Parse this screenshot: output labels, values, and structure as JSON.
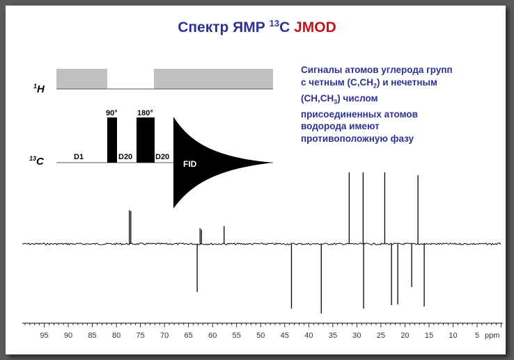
{
  "title": {
    "main": "Спектр ЯМР",
    "isotope": "13",
    "element": "С",
    "mode": "JMOD"
  },
  "description": {
    "l1": "Сигналы атомов углерода групп",
    "l2_a": "с четным (С,СН",
    "l2_sub": "2",
    "l2_b": ") и нечетным",
    "l3_a": "(СН,СН",
    "l3_sub": "3",
    "l3_b": ") числом",
    "l4": "присоединенных атомов",
    "l5": "водорода имеют",
    "l6": "противоположную фазу"
  },
  "pulse_sequence": {
    "h_channel": "1H",
    "c_channel": "13C",
    "d1": "D1",
    "d20a": "D20",
    "d20b": "D20",
    "pulse90": "90°",
    "pulse180": "180°",
    "fid": "FID"
  },
  "colors": {
    "title": "#2e3192",
    "accent": "#c1131a",
    "decoupler": "#c0c0c0"
  },
  "chart_data": {
    "type": "line",
    "xlabel_unit": "ppm",
    "xlim": [
      99,
      0
    ],
    "ticks": [
      95,
      90,
      85,
      80,
      75,
      70,
      65,
      60,
      55,
      50,
      45,
      40,
      35,
      30,
      25,
      20,
      15,
      10,
      5
    ],
    "peaks_positive": [
      {
        "ppm": 77.3,
        "h": 0.47
      },
      {
        "ppm": 77.0,
        "h": 0.46
      },
      {
        "ppm": 62.6,
        "h": 0.22
      },
      {
        "ppm": 62.3,
        "h": 0.2
      },
      {
        "ppm": 57.6,
        "h": 0.25
      },
      {
        "ppm": 31.6,
        "h": 1.0
      },
      {
        "ppm": 28.7,
        "h": 1.0
      },
      {
        "ppm": 24.2,
        "h": 1.0
      },
      {
        "ppm": 17.3,
        "h": 0.96
      }
    ],
    "peaks_negative": [
      {
        "ppm": 63.2,
        "h": 0.69
      },
      {
        "ppm": 43.6,
        "h": 0.93
      },
      {
        "ppm": 37.4,
        "h": 1.0
      },
      {
        "ppm": 28.6,
        "h": 0.93
      },
      {
        "ppm": 22.8,
        "h": 0.88
      },
      {
        "ppm": 21.5,
        "h": 0.87
      },
      {
        "ppm": 18.6,
        "h": 0.62
      },
      {
        "ppm": 16.0,
        "h": 0.9
      }
    ]
  }
}
